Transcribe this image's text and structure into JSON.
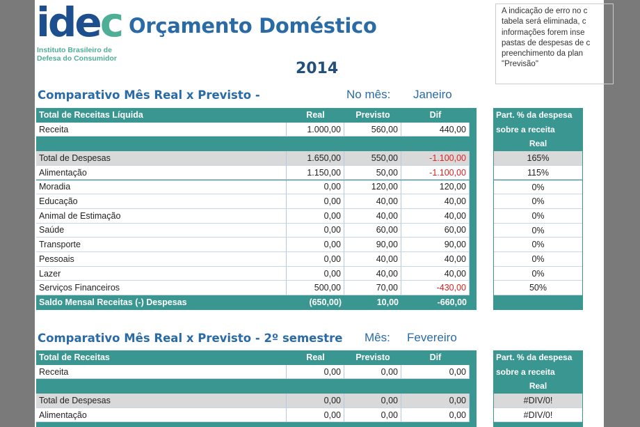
{
  "logo": {
    "name": "idec",
    "subtitle_line1": "Instituto Brasileiro de",
    "subtitle_line2": "Defesa do Consumidor"
  },
  "title": "Orçamento Doméstico",
  "year": "2014",
  "note": [
    "A indicação de erro no c",
    "tabela será eliminada, c",
    "informações forem inse",
    "pastas de despesas de c",
    "preenchimento da plan",
    "\"Previsão\""
  ],
  "sections": [
    {
      "title": "Comparativo  Mês Real x Previsto -",
      "month_label": "No mês:",
      "month": "Janeiro",
      "headers": [
        "Total de Receitas Líquida",
        "Real",
        "Previsto",
        "Dif"
      ],
      "rows": [
        {
          "type": "data",
          "cells": [
            "Receita",
            "1.000,00",
            "560,00",
            "440,00"
          ]
        },
        {
          "type": "band",
          "cells": [
            "",
            "",
            "",
            ""
          ]
        },
        {
          "type": "gray",
          "cells": [
            "Total de Despesas",
            "1.650,00",
            "550,00",
            "-1.100,00"
          ],
          "neg": true,
          "pct": "165%"
        },
        {
          "type": "data",
          "cells": [
            "Alimentação",
            "1.150,00",
            "50,00",
            "-1.100,00"
          ],
          "neg": true,
          "pct": "115%"
        },
        {
          "type": "data",
          "cells": [
            "Moradia",
            "0,00",
            "120,00",
            "120,00"
          ],
          "pct": "0%"
        },
        {
          "type": "data",
          "cells": [
            "Educação",
            "0,00",
            "40,00",
            "40,00"
          ],
          "pct": "0%"
        },
        {
          "type": "data",
          "cells": [
            "Animal de Estimação",
            "0,00",
            "40,00",
            "40,00"
          ],
          "pct": "0%"
        },
        {
          "type": "data",
          "cells": [
            "Saúde",
            "0,00",
            "60,00",
            "60,00"
          ],
          "pct": "0%"
        },
        {
          "type": "data",
          "cells": [
            "Transporte",
            "0,00",
            "90,00",
            "90,00"
          ],
          "pct": "0%"
        },
        {
          "type": "data",
          "cells": [
            "Pessoais",
            "0,00",
            "40,00",
            "40,00"
          ],
          "pct": "0%"
        },
        {
          "type": "data",
          "cells": [
            "Lazer",
            "0,00",
            "40,00",
            "40,00"
          ],
          "pct": "0%"
        },
        {
          "type": "data",
          "cells": [
            "Serviços Financeiros",
            "500,00",
            "70,00",
            "-430,00"
          ],
          "neg": true,
          "pct": "50%"
        },
        {
          "type": "foot",
          "cells": [
            "Saldo Mensal Receitas (-) Despesas",
            "(650,00)",
            "10,00",
            "-660,00"
          ],
          "neg": true
        }
      ],
      "pct_header": [
        "Part. % da despesa",
        "sobre a receita",
        "Real"
      ]
    },
    {
      "title": "Comparativo  Mês Real x Previsto - 2º semestre",
      "month_label": "Mês:",
      "month": "Fevereiro",
      "headers": [
        "Total de Receitas",
        "Real",
        "Previsto",
        "Dif"
      ],
      "rows": [
        {
          "type": "data",
          "cells": [
            "Receita",
            "0,00",
            "0,00",
            "0,00"
          ]
        },
        {
          "type": "band",
          "cells": [
            "",
            "",
            "",
            ""
          ]
        },
        {
          "type": "gray",
          "cells": [
            "Total de Despesas",
            "0,00",
            "0,00",
            "0,00"
          ],
          "pct": "#DIV/0!"
        },
        {
          "type": "data",
          "cells": [
            "Alimentação",
            "0,00",
            "0,00",
            "0,00"
          ],
          "pct": "#DIV/0!"
        }
      ],
      "pct_header": [
        "Part. % da despesa",
        "sobre a receita",
        "Real"
      ]
    }
  ]
}
